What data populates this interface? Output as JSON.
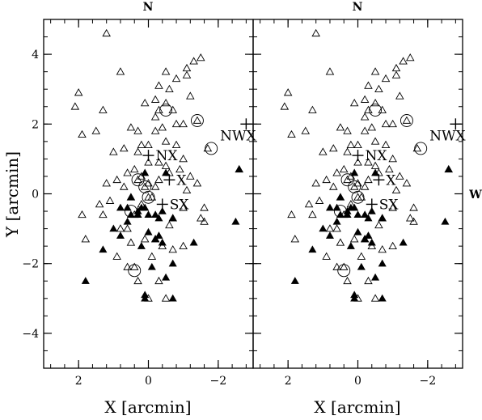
{
  "chart_data": {
    "type": "scatter",
    "panels": 2,
    "xlabel": "X [arcmin]",
    "ylabel": "Y [arcmin]",
    "xlim": [
      3.0,
      -3.0
    ],
    "ylim": [
      -5.0,
      5.0
    ],
    "x_ticks": [
      2,
      0,
      -2
    ],
    "x_tick_labels": [
      "2",
      "0",
      "−2"
    ],
    "y_ticks": [
      -4,
      -2,
      0,
      2,
      4
    ],
    "y_tick_labels": [
      "−4",
      "−2",
      "0",
      "2",
      "4"
    ],
    "grid": false,
    "compass": {
      "north": "N",
      "west": "W"
    },
    "open_triangles": [
      [
        1.2,
        4.6
      ],
      [
        2.0,
        2.9
      ],
      [
        2.1,
        2.5
      ],
      [
        1.9,
        1.7
      ],
      [
        1.5,
        1.8
      ],
      [
        1.3,
        2.4
      ],
      [
        0.8,
        3.5
      ],
      [
        0.1,
        2.6
      ],
      [
        -0.2,
        2.7
      ],
      [
        -0.2,
        2.2
      ],
      [
        -0.5,
        2.6
      ],
      [
        -0.7,
        2.4
      ],
      [
        -0.6,
        3.0
      ],
      [
        -0.3,
        3.1
      ],
      [
        -0.5,
        3.5
      ],
      [
        -0.8,
        3.3
      ],
      [
        -1.1,
        3.4
      ],
      [
        -1.1,
        3.6
      ],
      [
        -1.3,
        3.8
      ],
      [
        -1.5,
        3.9
      ],
      [
        -1.2,
        2.8
      ],
      [
        -1.0,
        2.0
      ],
      [
        -0.8,
        2.0
      ],
      [
        -0.4,
        1.9
      ],
      [
        -0.2,
        1.8
      ],
      [
        -0.5,
        1.5
      ],
      [
        0.0,
        1.4
      ],
      [
        0.3,
        1.8
      ],
      [
        0.5,
        1.9
      ],
      [
        0.7,
        1.3
      ],
      [
        -0.8,
        1.4
      ],
      [
        -1.0,
        1.0
      ],
      [
        -0.5,
        0.8
      ],
      [
        -0.3,
        0.9
      ],
      [
        -0.6,
        0.6
      ],
      [
        -0.9,
        0.7
      ],
      [
        -1.2,
        0.5
      ],
      [
        -1.1,
        0.1
      ],
      [
        -1.4,
        0.3
      ],
      [
        -1.0,
        -0.4
      ],
      [
        -1.6,
        -0.4
      ],
      [
        -2.6,
        0.7
      ],
      [
        1.2,
        0.3
      ],
      [
        0.9,
        0.4
      ],
      [
        0.6,
        0.6
      ],
      [
        0.4,
        0.7
      ],
      [
        0.3,
        1.2
      ],
      [
        0.0,
        0.9
      ],
      [
        0.2,
        0.5
      ],
      [
        0.0,
        0.3
      ],
      [
        -0.2,
        0.2
      ],
      [
        -0.3,
        0.4
      ],
      [
        0.7,
        0.2
      ],
      [
        0.5,
        -0.1
      ],
      [
        1.1,
        -0.2
      ],
      [
        1.4,
        -0.3
      ],
      [
        1.9,
        -0.6
      ],
      [
        1.8,
        -1.3
      ],
      [
        1.3,
        -0.6
      ],
      [
        0.8,
        -1.0
      ],
      [
        0.6,
        -1.0
      ],
      [
        0.5,
        -1.4
      ],
      [
        0.1,
        -1.3
      ],
      [
        -0.2,
        -1.3
      ],
      [
        -0.4,
        -1.5
      ],
      [
        -0.6,
        -0.9
      ],
      [
        -0.7,
        -0.7
      ],
      [
        -0.7,
        -1.6
      ],
      [
        -1.0,
        -1.5
      ],
      [
        -1.5,
        -0.7
      ],
      [
        -1.6,
        -0.8
      ],
      [
        0.9,
        -1.8
      ],
      [
        0.6,
        -2.1
      ],
      [
        -0.1,
        -1.8
      ],
      [
        -0.3,
        -2.5
      ],
      [
        0.3,
        -2.5
      ],
      [
        0.0,
        -3.0
      ],
      [
        -0.5,
        -3.0
      ],
      [
        0.4,
        -0.6
      ],
      [
        0.2,
        -0.3
      ],
      [
        1.0,
        1.2
      ],
      [
        -0.3,
        2.4
      ],
      [
        -1.4,
        2.1
      ],
      [
        -1.7,
        1.3
      ],
      [
        0.3,
        0.4
      ],
      [
        0.1,
        0.2
      ],
      [
        0.0,
        -0.1
      ],
      [
        -0.1,
        -0.1
      ],
      [
        0.2,
        1.4
      ],
      [
        0.4,
        -2.1
      ]
    ],
    "filled_triangles": [
      [
        0.1,
        0.6
      ],
      [
        0.5,
        -0.1
      ],
      [
        0.6,
        -0.4
      ],
      [
        0.5,
        -0.6
      ],
      [
        0.6,
        -0.8
      ],
      [
        0.3,
        -0.6
      ],
      [
        0.2,
        -0.4
      ],
      [
        0.1,
        -0.4
      ],
      [
        0.8,
        -0.4
      ],
      [
        -0.2,
        -0.6
      ],
      [
        -0.4,
        -0.5
      ],
      [
        -0.7,
        -0.7
      ],
      [
        -0.3,
        -0.7
      ],
      [
        -0.2,
        -1.3
      ],
      [
        0.0,
        -1.1
      ],
      [
        -0.3,
        -1.2
      ],
      [
        -0.4,
        -1.4
      ],
      [
        1.3,
        -1.6
      ],
      [
        1.0,
        -1.0
      ],
      [
        0.8,
        -1.2
      ],
      [
        0.2,
        -1.5
      ],
      [
        -0.7,
        -2.0
      ],
      [
        -0.5,
        -2.4
      ],
      [
        -0.7,
        -3.0
      ],
      [
        0.1,
        -2.9
      ],
      [
        0.1,
        -3.0
      ],
      [
        1.8,
        -2.5
      ],
      [
        -2.5,
        -0.8
      ],
      [
        -2.6,
        0.7
      ],
      [
        0.3,
        -0.5
      ],
      [
        -0.5,
        0.6
      ],
      [
        -1.3,
        -1.4
      ],
      [
        0.0,
        -0.6
      ],
      [
        -0.1,
        -2.1
      ]
    ],
    "circled_sources": [
      [
        0.3,
        0.4
      ],
      [
        0.1,
        0.2
      ],
      [
        0.0,
        -0.1
      ],
      [
        0.5,
        -0.5
      ],
      [
        -0.5,
        2.4
      ],
      [
        -1.4,
        2.1
      ],
      [
        -1.8,
        1.3
      ],
      [
        0.4,
        -2.2
      ]
    ],
    "labeled_sources": [
      {
        "label": "NX",
        "x": 0.0,
        "y": 1.1,
        "label_pos": "right"
      },
      {
        "label": "X",
        "x": -0.6,
        "y": 0.4,
        "label_pos": "right"
      },
      {
        "label": "SX",
        "x": -0.4,
        "y": -0.3,
        "label_pos": "right"
      },
      {
        "label": "NWX",
        "x": -2.8,
        "y": 2.0,
        "label_pos": "below"
      }
    ]
  }
}
